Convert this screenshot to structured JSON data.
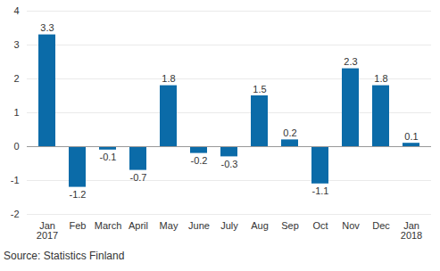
{
  "chart_data": {
    "type": "bar",
    "categories": [
      "Jan\n2017",
      "Feb",
      "March",
      "April",
      "May",
      "June",
      "July",
      "Aug",
      "Sep",
      "Oct",
      "Nov",
      "Dec",
      "Jan\n2018"
    ],
    "values": [
      3.3,
      -1.2,
      -0.1,
      -0.7,
      1.8,
      -0.2,
      -0.3,
      1.5,
      0.2,
      -1.1,
      2.3,
      1.8,
      0.1
    ],
    "color": "#0b6ba8",
    "ylim": [
      -2,
      4
    ],
    "yticks": [
      -2,
      -1,
      0,
      1,
      2,
      3,
      4
    ],
    "grid": true,
    "data_labels": true,
    "caption": "Source: Statistics Finland"
  }
}
